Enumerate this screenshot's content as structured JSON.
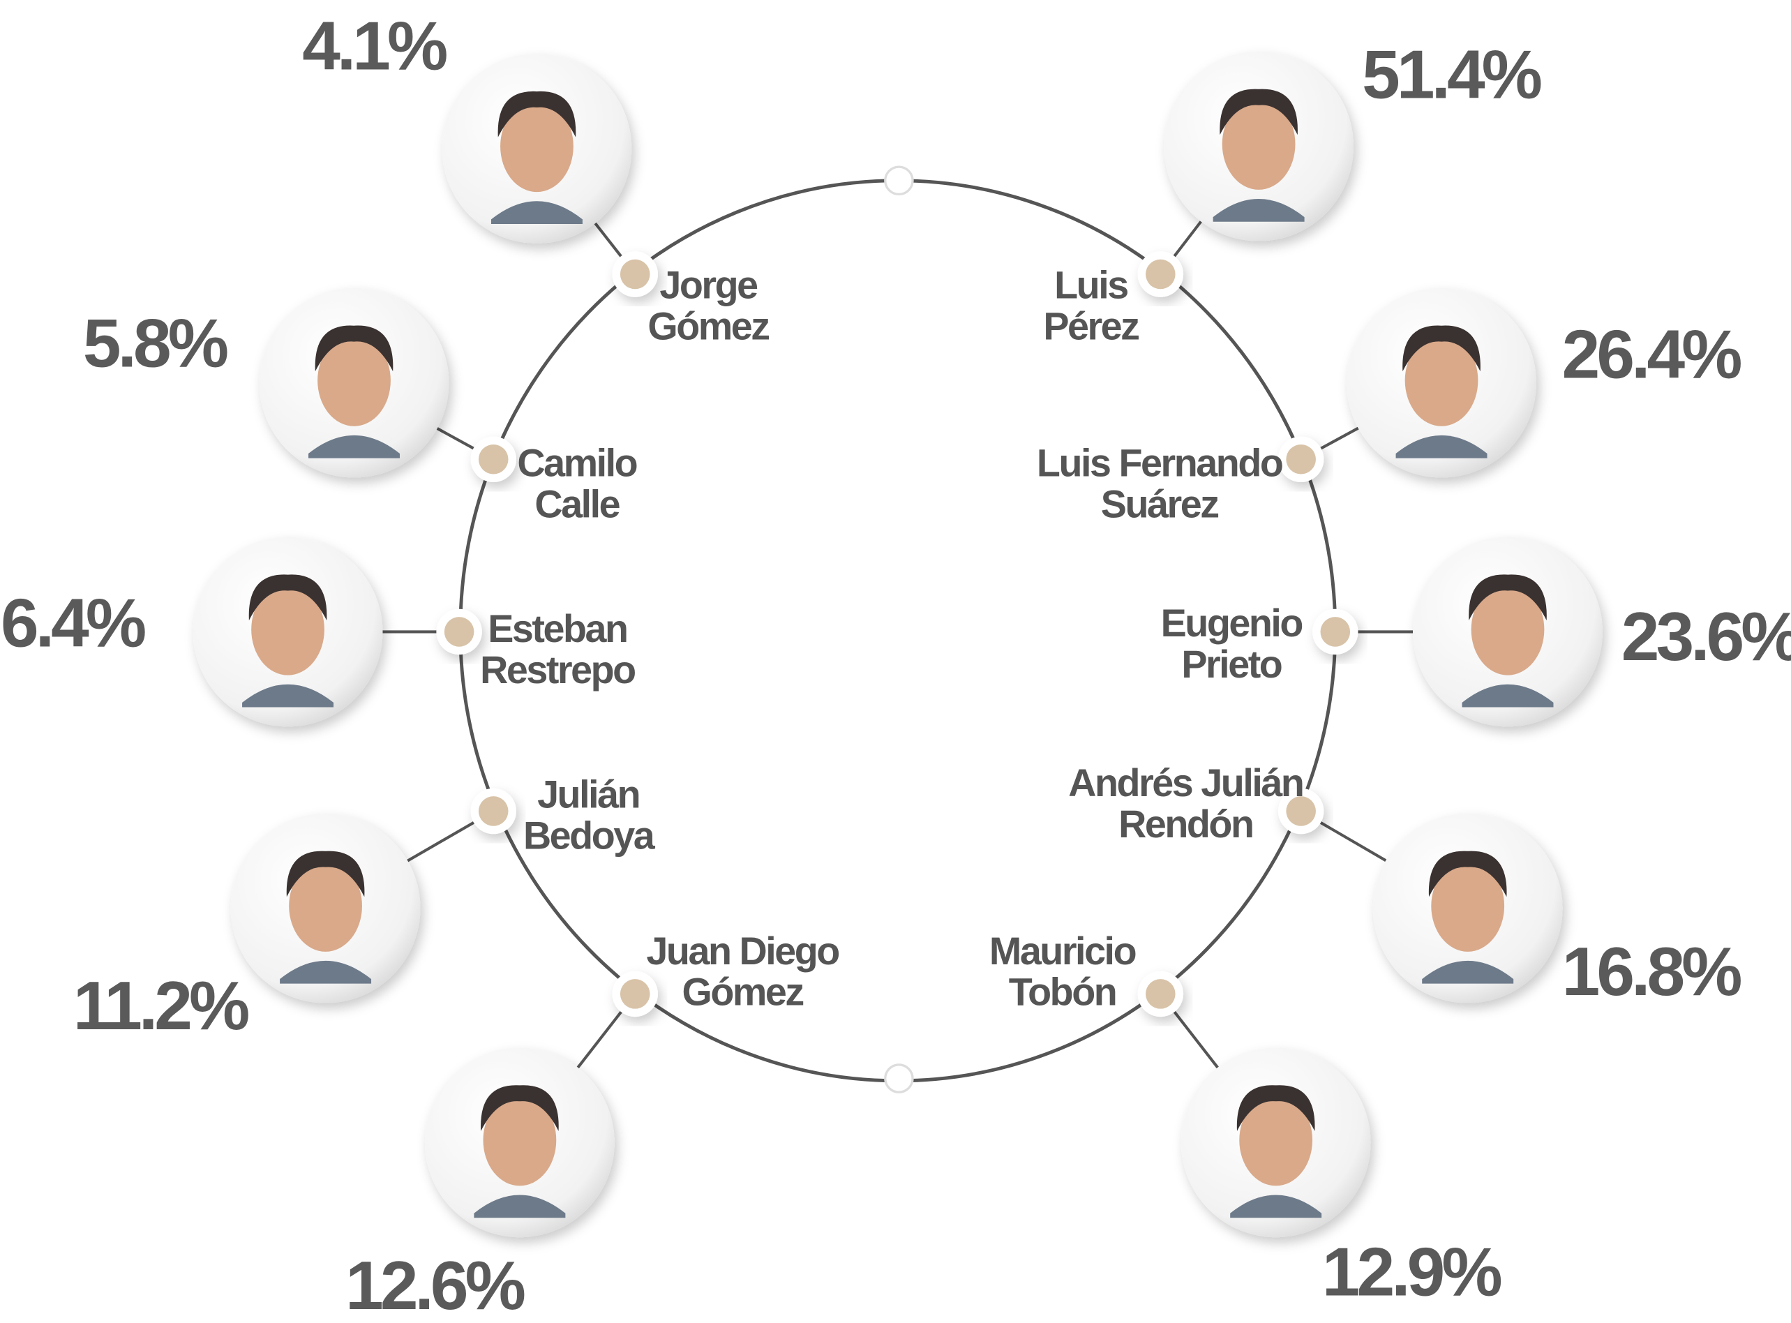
{
  "candidates": [
    {
      "name_lines": [
        "Jorge",
        "Gómez"
      ],
      "percent": "4.1%"
    },
    {
      "name_lines": [
        "Camilo",
        "Calle"
      ],
      "percent": "5.8%"
    },
    {
      "name_lines": [
        "Esteban",
        "Restrepo"
      ],
      "percent": "6.4%"
    },
    {
      "name_lines": [
        "Julián",
        "Bedoya"
      ],
      "percent": "11.2%"
    },
    {
      "name_lines": [
        "Juan Diego",
        "Gómez"
      ],
      "percent": "12.6%"
    },
    {
      "name_lines": [
        "Luis",
        "Pérez"
      ],
      "percent": "51.4%"
    },
    {
      "name_lines": [
        "Luis Fernando",
        "Suárez"
      ],
      "percent": "26.4%"
    },
    {
      "name_lines": [
        "Eugenio",
        "Prieto"
      ],
      "percent": "23.6%"
    },
    {
      "name_lines": [
        "Andrés Julián",
        "Rendón"
      ],
      "percent": "16.8%"
    },
    {
      "name_lines": [
        "Mauricio",
        "Tobón"
      ],
      "percent": "12.9%"
    }
  ]
}
